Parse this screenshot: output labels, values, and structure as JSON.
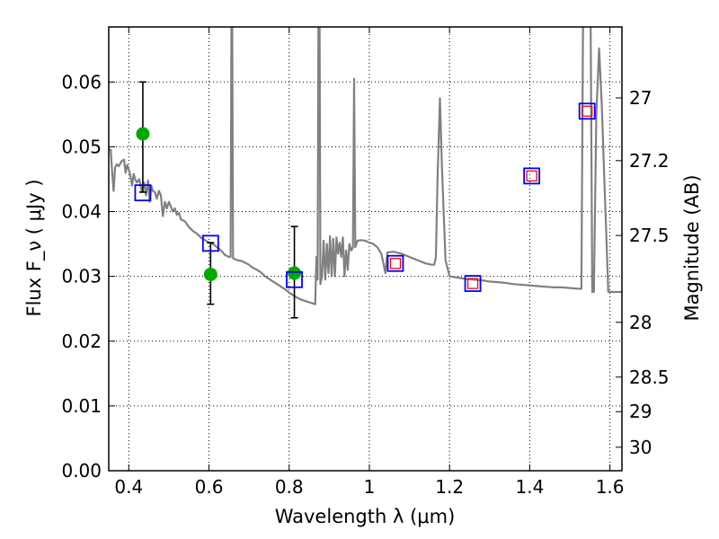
{
  "chart_data": {
    "type": "line",
    "xlabel": "Wavelength  λ (μm)",
    "ylabel": "Flux  F_ν  ( μJy )",
    "ylabel_right": "Magnitude (AB)",
    "xlim": [
      0.35,
      1.63
    ],
    "ylim": [
      0.0,
      0.0685
    ],
    "grid": true,
    "x_ticks": [
      0.4,
      0.6,
      0.8,
      1.0,
      1.2,
      1.4,
      1.6
    ],
    "x_tick_labels": [
      "0.4",
      "0.6",
      "0.8",
      "1",
      "1.2",
      "1.4",
      "1.6"
    ],
    "y_ticks": [
      0.0,
      0.01,
      0.02,
      0.03,
      0.04,
      0.05,
      0.06
    ],
    "y_tick_labels": [
      "0.00",
      "0.01",
      "0.02",
      "0.03",
      "0.04",
      "0.05",
      "0.06"
    ],
    "right_ticks": [
      {
        "mag": 27.0,
        "label": "27"
      },
      {
        "mag": 27.2,
        "label": "27.2"
      },
      {
        "mag": 27.5,
        "label": "27.5"
      },
      {
        "mag": 28.0,
        "label": "28"
      },
      {
        "mag": 28.5,
        "label": "28.5"
      },
      {
        "mag": 29.0,
        "label": "29"
      },
      {
        "mag": 30.0,
        "label": "30"
      }
    ],
    "series": [
      {
        "kind": "line",
        "color": "#808080",
        "points": [
          [
            0.35,
            0.0497
          ],
          [
            0.355,
            0.0495
          ],
          [
            0.358,
            0.0465
          ],
          [
            0.362,
            0.0432
          ],
          [
            0.366,
            0.0468
          ],
          [
            0.37,
            0.0473
          ],
          [
            0.375,
            0.047
          ],
          [
            0.382,
            0.0478
          ],
          [
            0.388,
            0.048
          ],
          [
            0.392,
            0.046
          ],
          [
            0.396,
            0.0472
          ],
          [
            0.4,
            0.0465
          ],
          [
            0.404,
            0.0455
          ],
          [
            0.408,
            0.044
          ],
          [
            0.412,
            0.0458
          ],
          [
            0.416,
            0.045
          ],
          [
            0.42,
            0.0445
          ],
          [
            0.426,
            0.045
          ],
          [
            0.432,
            0.0432
          ],
          [
            0.438,
            0.0445
          ],
          [
            0.443,
            0.0425
          ],
          [
            0.448,
            0.0448
          ],
          [
            0.452,
            0.0415
          ],
          [
            0.456,
            0.044
          ],
          [
            0.46,
            0.0432
          ],
          [
            0.465,
            0.043
          ],
          [
            0.47,
            0.042
          ],
          [
            0.475,
            0.0432
          ],
          [
            0.48,
            0.0425
          ],
          [
            0.485,
            0.0393
          ],
          [
            0.49,
            0.0415
          ],
          [
            0.495,
            0.0405
          ],
          [
            0.5,
            0.0415
          ],
          [
            0.505,
            0.0408
          ],
          [
            0.51,
            0.04
          ],
          [
            0.515,
            0.0405
          ],
          [
            0.52,
            0.0395
          ],
          [
            0.525,
            0.0398
          ],
          [
            0.53,
            0.0388
          ],
          [
            0.54,
            0.0385
          ],
          [
            0.55,
            0.0376
          ],
          [
            0.56,
            0.037
          ],
          [
            0.57,
            0.0366
          ],
          [
            0.58,
            0.036
          ],
          [
            0.59,
            0.0356
          ],
          [
            0.6,
            0.0352
          ],
          [
            0.61,
            0.035
          ],
          [
            0.62,
            0.0345
          ],
          [
            0.63,
            0.034
          ],
          [
            0.64,
            0.0333
          ],
          [
            0.65,
            0.033
          ],
          [
            0.654,
            0.033
          ],
          [
            0.656,
            0.069
          ],
          [
            0.658,
            0.069
          ],
          [
            0.66,
            0.0328
          ],
          [
            0.67,
            0.0325
          ],
          [
            0.68,
            0.0324
          ],
          [
            0.69,
            0.0321
          ],
          [
            0.7,
            0.0318
          ],
          [
            0.71,
            0.0313
          ],
          [
            0.72,
            0.031
          ],
          [
            0.73,
            0.0306
          ],
          [
            0.74,
            0.03
          ],
          [
            0.75,
            0.0296
          ],
          [
            0.76,
            0.0292
          ],
          [
            0.77,
            0.0288
          ],
          [
            0.78,
            0.0284
          ],
          [
            0.79,
            0.028
          ],
          [
            0.8,
            0.0275
          ],
          [
            0.81,
            0.0271
          ],
          [
            0.82,
            0.0267
          ],
          [
            0.83,
            0.0264
          ],
          [
            0.84,
            0.0262
          ],
          [
            0.85,
            0.026
          ],
          [
            0.86,
            0.0258
          ],
          [
            0.865,
            0.0257
          ],
          [
            0.868,
            0.033
          ],
          [
            0.871,
            0.0295
          ],
          [
            0.873,
            0.069
          ],
          [
            0.876,
            0.069
          ],
          [
            0.878,
            0.0288
          ],
          [
            0.882,
            0.03
          ],
          [
            0.886,
            0.0355
          ],
          [
            0.89,
            0.0295
          ],
          [
            0.894,
            0.035
          ],
          [
            0.898,
            0.0305
          ],
          [
            0.902,
            0.0362
          ],
          [
            0.906,
            0.03
          ],
          [
            0.91,
            0.0358
          ],
          [
            0.914,
            0.03
          ],
          [
            0.918,
            0.036
          ],
          [
            0.922,
            0.0335
          ],
          [
            0.926,
            0.0352
          ],
          [
            0.93,
            0.033
          ],
          [
            0.934,
            0.036
          ],
          [
            0.938,
            0.03
          ],
          [
            0.942,
            0.034
          ],
          [
            0.946,
            0.031
          ],
          [
            0.95,
            0.035
          ],
          [
            0.955,
            0.034
          ],
          [
            0.959,
            0.0345
          ],
          [
            0.962,
            0.0605
          ],
          [
            0.965,
            0.0345
          ],
          [
            0.97,
            0.0355
          ],
          [
            0.98,
            0.0356
          ],
          [
            0.99,
            0.0355
          ],
          [
            1.0,
            0.0352
          ],
          [
            1.01,
            0.035
          ],
          [
            1.02,
            0.0345
          ],
          [
            1.03,
            0.0335
          ],
          [
            1.035,
            0.032
          ],
          [
            1.04,
            0.0305
          ],
          [
            1.045,
            0.0337
          ],
          [
            1.06,
            0.0338
          ],
          [
            1.08,
            0.0335
          ],
          [
            1.1,
            0.033
          ],
          [
            1.12,
            0.0325
          ],
          [
            1.14,
            0.032
          ],
          [
            1.155,
            0.0318
          ],
          [
            1.162,
            0.0318
          ],
          [
            1.166,
            0.033
          ],
          [
            1.17,
            0.045
          ],
          [
            1.176,
            0.0575
          ],
          [
            1.181,
            0.047
          ],
          [
            1.186,
            0.039
          ],
          [
            1.19,
            0.0325
          ],
          [
            1.196,
            0.031
          ],
          [
            1.2,
            0.03
          ],
          [
            1.22,
            0.0298
          ],
          [
            1.24,
            0.0296
          ],
          [
            1.26,
            0.0295
          ],
          [
            1.28,
            0.0294
          ],
          [
            1.3,
            0.0292
          ],
          [
            1.32,
            0.0291
          ],
          [
            1.34,
            0.029
          ],
          [
            1.36,
            0.0288
          ],
          [
            1.38,
            0.0287
          ],
          [
            1.4,
            0.0286
          ],
          [
            1.42,
            0.0285
          ],
          [
            1.44,
            0.0284
          ],
          [
            1.46,
            0.0283
          ],
          [
            1.48,
            0.0283
          ],
          [
            1.5,
            0.0282
          ],
          [
            1.52,
            0.0281
          ],
          [
            1.529,
            0.0281
          ],
          [
            1.533,
            0.069
          ],
          [
            1.552,
            0.069
          ],
          [
            1.556,
            0.0276
          ],
          [
            1.56,
            0.0276
          ],
          [
            1.566,
            0.055
          ],
          [
            1.573,
            0.0652
          ],
          [
            1.58,
            0.056
          ],
          [
            1.586,
            0.045
          ],
          [
            1.59,
            0.038
          ],
          [
            1.596,
            0.0276
          ],
          [
            1.62,
            0.0276
          ],
          [
            1.63,
            0.0276
          ]
        ]
      },
      {
        "kind": "errorbar",
        "color": "#000000",
        "points": [
          {
            "x": 0.435,
            "lo": 0.043,
            "hi": 0.06
          },
          {
            "x": 0.604,
            "lo": 0.0257,
            "hi": 0.0352
          },
          {
            "x": 0.813,
            "lo": 0.0236,
            "hi": 0.0377
          }
        ]
      },
      {
        "kind": "scatter",
        "marker": "circle",
        "color": "#00aa00",
        "points": [
          [
            0.435,
            0.052
          ],
          [
            0.604,
            0.0303
          ],
          [
            0.813,
            0.0305
          ]
        ]
      },
      {
        "kind": "scatter",
        "marker": "square-open",
        "color": "#0000ff",
        "points": [
          [
            0.435,
            0.0429
          ],
          [
            0.604,
            0.0351
          ],
          [
            0.813,
            0.0295
          ],
          [
            1.065,
            0.032
          ],
          [
            1.258,
            0.0289
          ],
          [
            1.405,
            0.0455
          ],
          [
            1.543,
            0.0555
          ]
        ]
      },
      {
        "kind": "scatter",
        "marker": "square-open-small",
        "color": "#ff0000",
        "points": [
          [
            1.065,
            0.032
          ],
          [
            1.258,
            0.0289
          ],
          [
            1.405,
            0.0455
          ],
          [
            1.543,
            0.0555
          ]
        ]
      }
    ]
  }
}
